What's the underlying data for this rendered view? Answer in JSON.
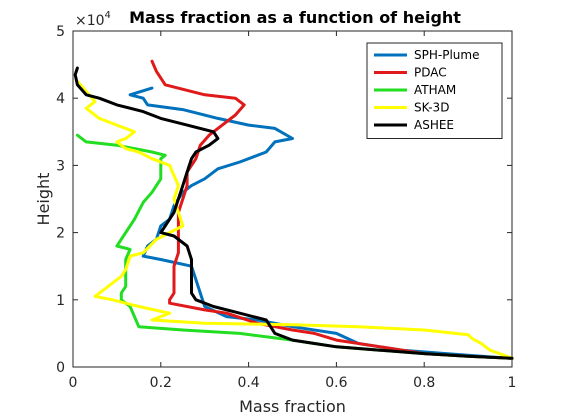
{
  "chart_data": {
    "type": "line",
    "title": "Mass fraction as a function of height",
    "xlabel": "Mass fraction",
    "ylabel": "Height",
    "xlim": [
      0,
      1
    ],
    "ylim": [
      0,
      50000
    ],
    "y_exponent_label": "×10",
    "y_exponent_power": "4",
    "x_ticks": [
      0,
      0.2,
      0.4,
      0.6,
      0.8,
      1
    ],
    "x_tick_labels": [
      "0",
      "0.2",
      "0.4",
      "0.6",
      "0.8",
      "1"
    ],
    "y_ticks": [
      0,
      10000,
      20000,
      30000,
      40000,
      50000
    ],
    "y_tick_labels": [
      "0",
      "1",
      "2",
      "3",
      "4",
      "5"
    ],
    "grid": false,
    "legend_position": "top-right",
    "series": [
      {
        "name": "SPH-Plume",
        "color": "#0072BD",
        "points": [
          [
            0.18,
            41500
          ],
          [
            0.13,
            40500
          ],
          [
            0.16,
            40000
          ],
          [
            0.17,
            39000
          ],
          [
            0.25,
            38300
          ],
          [
            0.33,
            37000
          ],
          [
            0.4,
            36000
          ],
          [
            0.46,
            35500
          ],
          [
            0.5,
            34000
          ],
          [
            0.46,
            33500
          ],
          [
            0.44,
            32000
          ],
          [
            0.38,
            30500
          ],
          [
            0.33,
            29500
          ],
          [
            0.3,
            28000
          ],
          [
            0.27,
            27000
          ],
          [
            0.25,
            26000
          ],
          [
            0.23,
            24000
          ],
          [
            0.22,
            22000
          ],
          [
            0.2,
            21000
          ],
          [
            0.19,
            19000
          ],
          [
            0.17,
            18000
          ],
          [
            0.16,
            16500
          ],
          [
            0.2,
            16000
          ],
          [
            0.27,
            15000
          ],
          [
            0.28,
            13000
          ],
          [
            0.3,
            9000
          ],
          [
            0.35,
            7500
          ],
          [
            0.42,
            7000
          ],
          [
            0.5,
            6000
          ],
          [
            0.6,
            5000
          ],
          [
            0.65,
            3500
          ],
          [
            0.75,
            2500
          ],
          [
            0.85,
            2000
          ],
          [
            0.95,
            1500
          ],
          [
            1.0,
            1300
          ]
        ]
      },
      {
        "name": "PDAC",
        "color": "#E01A1A",
        "points": [
          [
            0.18,
            45500
          ],
          [
            0.19,
            44000
          ],
          [
            0.21,
            42000
          ],
          [
            0.3,
            40500
          ],
          [
            0.37,
            40000
          ],
          [
            0.39,
            39000
          ],
          [
            0.37,
            37500
          ],
          [
            0.34,
            36000
          ],
          [
            0.31,
            34500
          ],
          [
            0.29,
            33000
          ],
          [
            0.28,
            31000
          ],
          [
            0.26,
            29000
          ],
          [
            0.26,
            27000
          ],
          [
            0.25,
            25000
          ],
          [
            0.24,
            23000
          ],
          [
            0.24,
            20000
          ],
          [
            0.24,
            17000
          ],
          [
            0.23,
            15000
          ],
          [
            0.23,
            11000
          ],
          [
            0.22,
            10000
          ],
          [
            0.22,
            9500
          ],
          [
            0.3,
            8500
          ],
          [
            0.35,
            8000
          ],
          [
            0.42,
            6500
          ],
          [
            0.5,
            5500
          ],
          [
            0.55,
            5000
          ],
          [
            0.6,
            4000
          ],
          [
            0.7,
            3000
          ],
          [
            0.8,
            2000
          ],
          [
            0.9,
            1600
          ],
          [
            1.0,
            1300
          ]
        ]
      },
      {
        "name": "ATHAM",
        "color": "#22DD22",
        "points": [
          [
            0.01,
            34500
          ],
          [
            0.03,
            33500
          ],
          [
            0.1,
            33000
          ],
          [
            0.18,
            32000
          ],
          [
            0.21,
            31500
          ],
          [
            0.2,
            31000
          ],
          [
            0.2,
            29500
          ],
          [
            0.2,
            28000
          ],
          [
            0.18,
            26000
          ],
          [
            0.16,
            24500
          ],
          [
            0.14,
            22000
          ],
          [
            0.12,
            20000
          ],
          [
            0.1,
            18000
          ],
          [
            0.13,
            17500
          ],
          [
            0.12,
            16000
          ],
          [
            0.12,
            12000
          ],
          [
            0.11,
            11000
          ],
          [
            0.11,
            10000
          ],
          [
            0.13,
            9000
          ],
          [
            0.15,
            6000
          ],
          [
            0.25,
            5500
          ],
          [
            0.38,
            5000
          ],
          [
            0.5,
            4000
          ],
          [
            0.55,
            3500
          ],
          [
            0.6,
            3000
          ],
          [
            0.7,
            2500
          ],
          [
            0.8,
            2000
          ],
          [
            0.9,
            1600
          ],
          [
            1.0,
            1300
          ]
        ]
      },
      {
        "name": "SK-3D",
        "color": "#FFFF00",
        "points": [
          [
            0.01,
            42500
          ],
          [
            0.03,
            41000
          ],
          [
            0.05,
            39500
          ],
          [
            0.03,
            38500
          ],
          [
            0.06,
            37000
          ],
          [
            0.1,
            36000
          ],
          [
            0.14,
            35000
          ],
          [
            0.12,
            34000
          ],
          [
            0.1,
            33500
          ],
          [
            0.12,
            32500
          ],
          [
            0.15,
            32000
          ],
          [
            0.18,
            31000
          ],
          [
            0.22,
            30000
          ],
          [
            0.24,
            27000
          ],
          [
            0.23,
            25000
          ],
          [
            0.24,
            23000
          ],
          [
            0.25,
            21000
          ],
          [
            0.22,
            20000
          ],
          [
            0.19,
            19000
          ],
          [
            0.16,
            17000
          ],
          [
            0.13,
            16500
          ],
          [
            0.12,
            14500
          ],
          [
            0.11,
            13500
          ],
          [
            0.08,
            12000
          ],
          [
            0.05,
            10500
          ],
          [
            0.09,
            10000
          ],
          [
            0.15,
            9000
          ],
          [
            0.22,
            8000
          ],
          [
            0.18,
            7000
          ],
          [
            0.3,
            6500
          ],
          [
            0.5,
            6300
          ],
          [
            0.65,
            6000
          ],
          [
            0.8,
            5500
          ],
          [
            0.9,
            4800
          ],
          [
            0.91,
            4200
          ],
          [
            0.93,
            3500
          ],
          [
            0.95,
            2500
          ],
          [
            0.98,
            1800
          ],
          [
            1.0,
            1300
          ]
        ]
      },
      {
        "name": "ASHEE",
        "color": "#000000",
        "points": [
          [
            0.01,
            44500
          ],
          [
            0.005,
            43500
          ],
          [
            0.01,
            42000
          ],
          [
            0.03,
            40500
          ],
          [
            0.06,
            40000
          ],
          [
            0.1,
            39000
          ],
          [
            0.16,
            38000
          ],
          [
            0.2,
            37000
          ],
          [
            0.26,
            36000
          ],
          [
            0.32,
            35000
          ],
          [
            0.33,
            34000
          ],
          [
            0.31,
            33000
          ],
          [
            0.28,
            32000
          ],
          [
            0.27,
            31000
          ],
          [
            0.26,
            29000
          ],
          [
            0.25,
            27000
          ],
          [
            0.24,
            25000
          ],
          [
            0.23,
            23000
          ],
          [
            0.21,
            21000
          ],
          [
            0.2,
            20000
          ],
          [
            0.23,
            19500
          ],
          [
            0.26,
            18000
          ],
          [
            0.27,
            16000
          ],
          [
            0.27,
            14500
          ],
          [
            0.27,
            13000
          ],
          [
            0.27,
            11000
          ],
          [
            0.28,
            10000
          ],
          [
            0.32,
            9000
          ],
          [
            0.38,
            8000
          ],
          [
            0.44,
            7000
          ],
          [
            0.45,
            6000
          ],
          [
            0.46,
            5000
          ],
          [
            0.5,
            4000
          ],
          [
            0.55,
            3500
          ],
          [
            0.6,
            3000
          ],
          [
            0.7,
            2500
          ],
          [
            0.8,
            2000
          ],
          [
            0.9,
            1600
          ],
          [
            1.0,
            1300
          ]
        ]
      }
    ]
  }
}
